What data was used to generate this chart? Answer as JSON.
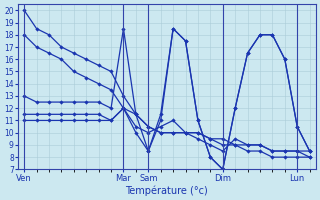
{
  "xlabel": "Température (°c)",
  "bg_color": "#cce8f0",
  "grid_color": "#aaccd8",
  "line_color": "#1a35b0",
  "ylim": [
    7,
    20.5
  ],
  "yticks": [
    7,
    8,
    9,
    10,
    11,
    12,
    13,
    14,
    15,
    16,
    17,
    18,
    19,
    20
  ],
  "day_labels": [
    "Ven",
    "Mar",
    "Sam",
    "Dim",
    "Lun"
  ],
  "day_positions": [
    0,
    8,
    10,
    16,
    22
  ],
  "xlim": [
    -0.5,
    23.5
  ],
  "lines": [
    [
      20.0,
      18.5,
      18.0,
      17.0,
      16.5,
      16.0,
      15.5,
      15.0,
      13.0,
      11.5,
      10.5,
      10.0,
      10.0,
      10.0,
      10.0,
      9.5,
      9.5,
      9.0,
      9.0,
      9.0,
      8.5,
      8.5,
      8.5,
      8.5
    ],
    [
      18.0,
      17.0,
      16.5,
      16.0,
      15.0,
      14.5,
      14.0,
      13.5,
      12.0,
      11.5,
      10.5,
      10.0,
      10.0,
      10.0,
      10.0,
      9.5,
      9.0,
      9.0,
      8.5,
      8.5,
      8.0,
      8.0,
      8.0,
      8.0
    ],
    [
      13.0,
      12.5,
      12.5,
      12.5,
      12.5,
      12.5,
      12.5,
      12.0,
      18.5,
      11.5,
      8.5,
      11.5,
      18.5,
      17.5,
      11.0,
      8.0,
      7.0,
      12.0,
      16.5,
      18.0,
      18.0,
      16.0,
      10.5,
      8.5
    ],
    [
      11.5,
      11.5,
      11.5,
      11.5,
      11.5,
      11.5,
      11.5,
      11.0,
      12.0,
      10.0,
      8.5,
      11.0,
      18.5,
      17.5,
      11.0,
      8.0,
      7.0,
      12.0,
      16.5,
      18.0,
      18.0,
      16.0,
      10.5,
      8.5
    ],
    [
      11.0,
      11.0,
      11.0,
      11.0,
      11.0,
      11.0,
      11.0,
      11.0,
      12.0,
      10.5,
      10.0,
      10.5,
      11.0,
      10.0,
      9.5,
      9.0,
      8.5,
      9.5,
      9.0,
      9.0,
      8.5,
      8.5,
      8.5,
      8.0
    ]
  ]
}
